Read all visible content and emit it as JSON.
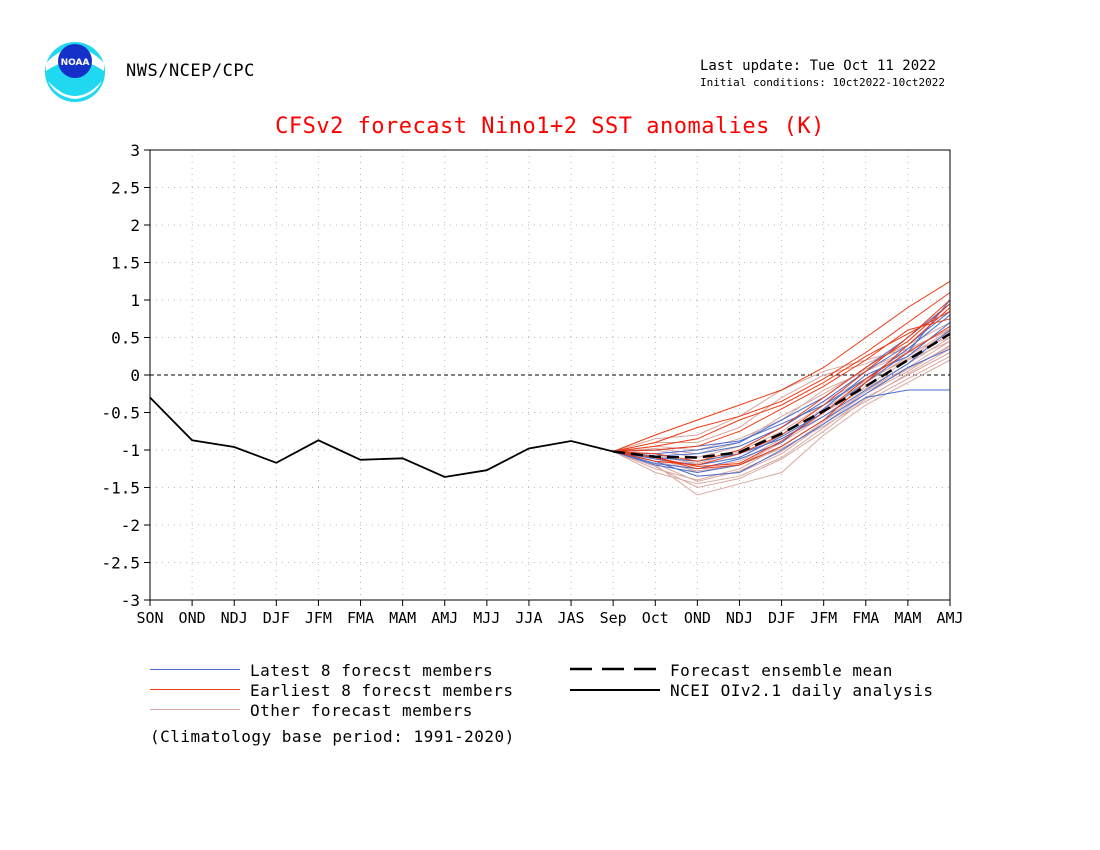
{
  "header": {
    "agency": "NWS/NCEP/CPC",
    "last_update": "Last update: Tue Oct 11 2022",
    "initial_conditions": "Initial conditions: 10ct2022-10ct2022",
    "logo_text": "NOAA"
  },
  "colors": {
    "latest": "#4a6fd1",
    "earliest": "#ee3a14",
    "other": "#d9a8a0",
    "title": "#ff0000",
    "observed": "#000000",
    "mean": "#000000"
  },
  "chart_data": {
    "type": "line",
    "title": "CFSv2 forecast Nino1+2 SST anomalies (K)",
    "xlabel": "",
    "ylabel": "",
    "categories": [
      "SON",
      "OND",
      "NDJ",
      "DJF",
      "JFM",
      "FMA",
      "MAM",
      "AMJ",
      "MJJ",
      "JJA",
      "JAS",
      "Sep",
      "Oct",
      "OND",
      "NDJ",
      "DJF",
      "JFM",
      "FMA",
      "MAM",
      "AMJ"
    ],
    "ylim": [
      -3,
      3
    ],
    "yticks": [
      "-3",
      "-2.5",
      "-2",
      "-1.5",
      "-1",
      "-0.5",
      "0",
      "0.5",
      "1",
      "1.5",
      "2",
      "2.5",
      "3"
    ],
    "grid": true,
    "observed": {
      "name": "NCEI OIv2.1 daily analysis",
      "start_index": 0,
      "values": [
        -0.3,
        -0.87,
        -0.96,
        -1.17,
        -0.87,
        -1.13,
        -1.11,
        -1.36,
        -1.27,
        -0.98,
        -0.88,
        -1.02
      ]
    },
    "forecast_start_index": 11,
    "forecast_mean": {
      "name": "Forecast ensemble mean",
      "values": [
        -1.02,
        -1.09,
        -1.1,
        -1.03,
        -0.78,
        -0.48,
        -0.15,
        0.2,
        0.55
      ]
    },
    "latest_members": [
      [
        -1.02,
        -1.12,
        -1.2,
        -1.1,
        -0.82,
        -0.5,
        -0.1,
        0.3,
        1.0
      ],
      [
        -1.02,
        -1.08,
        -1.05,
        -0.95,
        -0.7,
        -0.35,
        0.05,
        0.4,
        0.85
      ],
      [
        -1.02,
        -1.2,
        -1.3,
        -1.2,
        -0.95,
        -0.6,
        -0.25,
        0.1,
        0.35
      ],
      [
        -1.02,
        -1.15,
        -1.35,
        -1.3,
        -1.0,
        -0.65,
        -0.3,
        -0.2,
        -0.2
      ],
      [
        -1.02,
        -1.05,
        -1.0,
        -0.9,
        -0.6,
        -0.3,
        0.1,
        0.5,
        0.95
      ],
      [
        -1.02,
        -1.1,
        -1.15,
        -1.05,
        -0.85,
        -0.55,
        -0.2,
        0.15,
        0.6
      ],
      [
        -1.02,
        -1.18,
        -1.25,
        -1.12,
        -0.9,
        -0.45,
        0.0,
        0.25,
        0.7
      ],
      [
        -1.02,
        -1.0,
        -0.95,
        -0.88,
        -0.65,
        -0.4,
        -0.05,
        0.35,
        0.8
      ]
    ],
    "earliest_members": [
      [
        -1.02,
        -0.8,
        -0.6,
        -0.4,
        -0.2,
        0.1,
        0.5,
        0.9,
        1.25
      ],
      [
        -1.02,
        -0.9,
        -0.7,
        -0.55,
        -0.35,
        -0.05,
        0.3,
        0.7,
        1.1
      ],
      [
        -1.02,
        -1.1,
        -1.25,
        -1.2,
        -0.95,
        -0.6,
        -0.1,
        0.4,
        0.9
      ],
      [
        -1.02,
        -1.15,
        -1.2,
        -1.05,
        -0.8,
        -0.4,
        0.05,
        0.5,
        1.0
      ],
      [
        -1.02,
        -1.05,
        -1.15,
        -1.0,
        -0.7,
        -0.3,
        0.1,
        0.45,
        0.95
      ],
      [
        -1.02,
        -1.0,
        -0.95,
        -0.75,
        -0.45,
        -0.15,
        0.2,
        0.6,
        0.75
      ],
      [
        -1.02,
        -1.1,
        -1.22,
        -1.18,
        -0.88,
        -0.5,
        -0.05,
        0.3,
        0.65
      ],
      [
        -1.02,
        -0.95,
        -0.85,
        -0.6,
        -0.4,
        -0.1,
        0.25,
        0.55,
        0.85
      ]
    ],
    "other_members": [
      [
        -1.02,
        -1.3,
        -1.45,
        -1.35,
        -1.1,
        -0.7,
        -0.3,
        0.0,
        0.3
      ],
      [
        -1.02,
        -1.25,
        -1.4,
        -1.25,
        -0.95,
        -0.6,
        -0.2,
        0.1,
        0.45
      ],
      [
        -1.02,
        -1.2,
        -1.6,
        -1.45,
        -1.3,
        -0.8,
        -0.4,
        -0.1,
        0.2
      ],
      [
        -1.02,
        -1.15,
        -1.35,
        -1.3,
        -1.05,
        -0.65,
        -0.25,
        0.05,
        0.4
      ],
      [
        -1.02,
        -1.1,
        -1.3,
        -1.2,
        -0.9,
        -0.55,
        -0.15,
        0.2,
        0.55
      ],
      [
        -1.02,
        -1.05,
        -1.2,
        -1.1,
        -0.8,
        -0.45,
        -0.1,
        0.25,
        0.6
      ],
      [
        -1.02,
        -0.9,
        -0.9,
        -0.7,
        -0.3,
        0.0,
        0.15,
        0.4,
        0.7
      ],
      [
        -1.02,
        -0.95,
        -1.0,
        -0.85,
        -0.6,
        -0.2,
        0.05,
        0.3,
        0.5
      ],
      [
        -1.02,
        -1.0,
        -1.1,
        -0.95,
        -0.7,
        -0.35,
        -0.05,
        0.2,
        0.45
      ],
      [
        -1.02,
        -1.15,
        -1.28,
        -1.2,
        -0.98,
        -0.68,
        -0.35,
        -0.05,
        0.25
      ],
      [
        -1.02,
        -1.22,
        -1.5,
        -1.38,
        -1.12,
        -0.75,
        -0.32,
        0.02,
        0.35
      ],
      [
        -1.02,
        -1.12,
        -1.25,
        -1.15,
        -0.85,
        -0.5,
        -0.18,
        0.15,
        0.5
      ],
      [
        -1.02,
        -0.85,
        -0.8,
        -0.55,
        -0.2,
        0.05,
        0.2,
        0.35,
        0.6
      ],
      [
        -1.02,
        -1.08,
        -1.18,
        -1.02,
        -0.75,
        -0.4,
        -0.08,
        0.22,
        0.58
      ],
      [
        -1.02,
        -1.18,
        -1.42,
        -1.28,
        -1.02,
        -0.62,
        -0.22,
        0.08,
        0.38
      ],
      [
        -1.02,
        -0.98,
        -1.05,
        -0.9,
        -0.55,
        -0.25,
        0.08,
        0.32,
        0.62
      ]
    ],
    "legend": {
      "latest": "Latest 8 forecst members",
      "earliest": "Earliest 8 forecst members",
      "other": "Other forecast members",
      "mean": "Forecast ensemble mean",
      "observed": "NCEI OIv2.1 daily analysis"
    },
    "note": "(Climatology base period: 1991-2020)"
  }
}
